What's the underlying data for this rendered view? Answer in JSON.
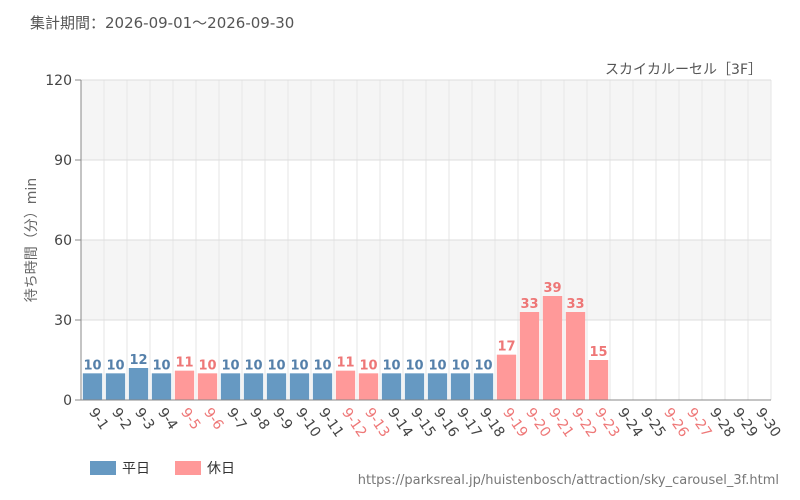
{
  "header": {
    "title": "集計期間：2026-09-01〜2026-09-30"
  },
  "chart_data": {
    "type": "bar",
    "title": "スカイカルーセル［3F］",
    "ylabel": "待ち時間（分）min",
    "xlabel": "",
    "ylim": [
      0,
      120
    ],
    "yticks": [
      0,
      30,
      60,
      90,
      120
    ],
    "categories": [
      "9-1",
      "9-2",
      "9-3",
      "9-4",
      "9-5",
      "9-6",
      "9-7",
      "9-8",
      "9-9",
      "9-10",
      "9-11",
      "9-12",
      "9-13",
      "9-14",
      "9-15",
      "9-16",
      "9-17",
      "9-18",
      "9-19",
      "9-20",
      "9-21",
      "9-22",
      "9-23",
      "9-24",
      "9-25",
      "9-26",
      "9-27",
      "9-28",
      "9-29",
      "9-30"
    ],
    "values": [
      10,
      10,
      12,
      10,
      11,
      10,
      10,
      10,
      10,
      10,
      10,
      11,
      10,
      10,
      10,
      10,
      10,
      10,
      17,
      33,
      39,
      33,
      15,
      null,
      null,
      null,
      null,
      null,
      null,
      null
    ],
    "day_type": [
      "weekday",
      "weekday",
      "weekday",
      "weekday",
      "holiday",
      "holiday",
      "weekday",
      "weekday",
      "weekday",
      "weekday",
      "weekday",
      "holiday",
      "holiday",
      "weekday",
      "weekday",
      "weekday",
      "weekday",
      "weekday",
      "holiday",
      "holiday",
      "holiday",
      "holiday",
      "holiday",
      "weekday",
      "weekday",
      "holiday",
      "holiday",
      "weekday",
      "weekday",
      "weekday"
    ],
    "grid": true,
    "legend_position": "bottom-left",
    "legend": [
      {
        "key": "weekday",
        "label": "平日"
      },
      {
        "key": "holiday",
        "label": "休日"
      }
    ],
    "colors": {
      "weekday": "#6699c2",
      "holiday": "#ff9999",
      "weekday_text": "#5580aa",
      "holiday_text": "#ee7777"
    }
  },
  "footer": {
    "source": "https://parksreal.jp/huistenbosch/attraction/sky_carousel_3f.html"
  }
}
